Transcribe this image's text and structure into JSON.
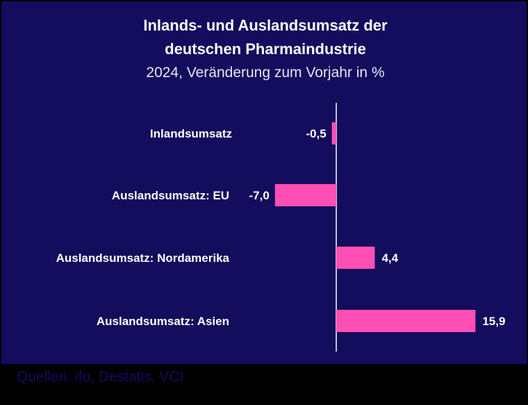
{
  "chart_data": {
    "type": "bar",
    "orientation": "horizontal",
    "title": [
      "Inlands- und Auslandsumsatz der",
      "deutschen Pharmaindustrie"
    ],
    "subtitle": "2024, Veränderung zum Vorjahr in %",
    "categories": [
      "Inlandsumsatz",
      "Auslandsumsatz: EU",
      "Auslandsumsatz: Nordamerika",
      "Auslandsumsatz: Asien"
    ],
    "values": [
      -0.5,
      -7.0,
      4.4,
      15.9
    ],
    "value_labels": [
      "-0,5",
      "-7,0",
      "4,4",
      "15,9"
    ],
    "xlim": [
      -7.0,
      15.9
    ],
    "grid": false,
    "legend": "none",
    "colors": {
      "background": "#140c5c",
      "bar": "#ff4fb4",
      "text": "#ffffff"
    }
  },
  "source": "Quellen: ifo, Destatis, VCI"
}
